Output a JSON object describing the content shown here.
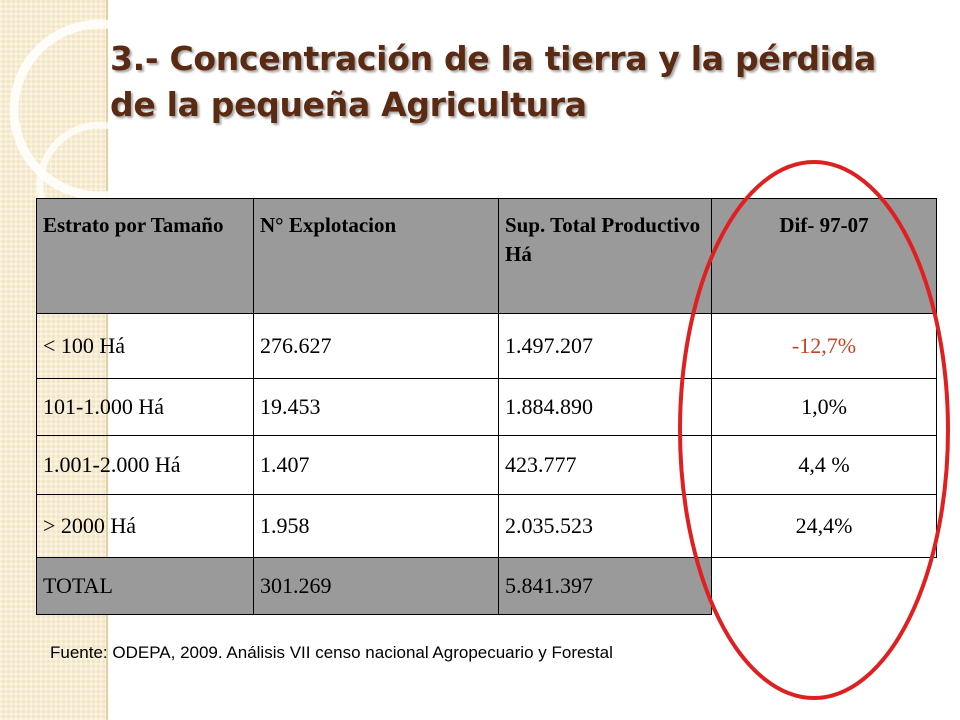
{
  "slide": {
    "title_line1": "3.- Concentración de la tierra y la pérdida",
    "title_line2": "de la pequeña Agricultura",
    "source": "Fuente: ODEPA, 2009. Análisis VII censo nacional Agropecuario y Forestal"
  },
  "colors": {
    "title": "#5a2a12",
    "header_bg": "#9a9a9a",
    "negative_value": "#c8441e",
    "highlight_circle": "#e02020",
    "side_strip": "#f3e6c4"
  },
  "table": {
    "headers": [
      "Estrato por Tamaño",
      "N° Explotacion",
      "Sup. Total Productivo Há",
      "Dif- 97-07"
    ],
    "rows": [
      {
        "estrato": "< 100 Há",
        "explotaciones": "276.627",
        "superficie": "1.497.207",
        "diferencia": "-12,7%"
      },
      {
        "estrato": "101-1.000 Há",
        "explotaciones": "19.453",
        "superficie": "1.884.890",
        "diferencia": "1,0%"
      },
      {
        "estrato": "1.001-2.000 Há",
        "explotaciones": "1.407",
        "superficie": "423.777",
        "diferencia": "4,4 %"
      },
      {
        "estrato": "> 2000 Há",
        "explotaciones": "1.958",
        "superficie": "2.035.523",
        "diferencia": "24,4%"
      }
    ],
    "total": {
      "estrato": "TOTAL",
      "explotaciones": "301.269",
      "superficie": "5.841.397"
    }
  }
}
